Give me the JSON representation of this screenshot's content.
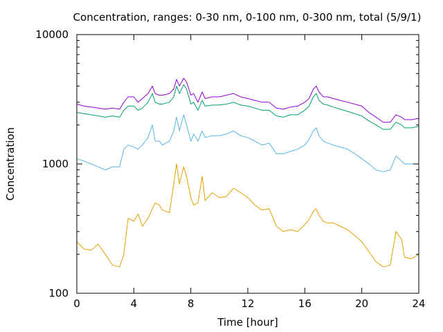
{
  "chart_data": {
    "type": "line",
    "title": "Concentration, ranges: 0-30 nm, 0-100 nm, 0-300 nm, total (5/9/1)",
    "xlabel": "Time [hour]",
    "ylabel": "Concentration",
    "xlim": [
      0,
      24
    ],
    "ylim": [
      100,
      10000
    ],
    "yscale": "log",
    "grid": false,
    "xticks": [
      0,
      4,
      8,
      12,
      16,
      20,
      24
    ],
    "yticks": [
      100,
      1000,
      10000
    ],
    "xtick_labels": [
      "0",
      "4",
      "8",
      "12",
      "16",
      "20",
      "24"
    ],
    "ytick_labels": [
      "100",
      "1000",
      "10000"
    ],
    "series": [
      {
        "color": "#9400d3",
        "x": [
          0,
          0.5,
          1,
          1.5,
          2,
          2.5,
          3,
          3.3,
          3.6,
          4,
          4.3,
          4.6,
          5,
          5.3,
          5.5,
          5.8,
          6,
          6.5,
          6.8,
          7,
          7.2,
          7.5,
          7.7,
          8,
          8.2,
          8.5,
          8.8,
          9,
          9.5,
          10,
          10.5,
          11,
          11.5,
          12,
          12.5,
          13,
          13.5,
          14,
          14.5,
          15,
          15.5,
          16,
          16.3,
          16.6,
          16.8,
          17,
          17.3,
          17.6,
          18,
          18.5,
          19,
          19.5,
          20,
          20.5,
          21,
          21.5,
          22,
          22.4,
          22.8,
          23,
          23.5,
          24
        ],
        "y": [
          2900,
          2800,
          2750,
          2700,
          2650,
          2700,
          2650,
          3000,
          3300,
          3300,
          3000,
          3200,
          3500,
          4000,
          3500,
          3400,
          3400,
          3500,
          3800,
          4500,
          4000,
          4600,
          4300,
          3400,
          3500,
          3000,
          3600,
          3200,
          3300,
          3300,
          3400,
          3500,
          3300,
          3200,
          3100,
          3000,
          3000,
          2700,
          2650,
          2750,
          2800,
          3000,
          3200,
          3800,
          4000,
          3600,
          3300,
          3300,
          3200,
          3100,
          3000,
          2900,
          2800,
          2500,
          2300,
          2100,
          2100,
          2400,
          2300,
          2200,
          2200,
          2250
        ]
      },
      {
        "color": "#009e73",
        "x": [
          0,
          0.5,
          1,
          1.5,
          2,
          2.5,
          3,
          3.3,
          3.6,
          4,
          4.3,
          4.6,
          5,
          5.3,
          5.5,
          5.8,
          6,
          6.5,
          6.8,
          7,
          7.2,
          7.5,
          7.7,
          8,
          8.2,
          8.5,
          8.8,
          9,
          9.5,
          10,
          10.5,
          11,
          11.5,
          12,
          12.5,
          13,
          13.5,
          14,
          14.5,
          15,
          15.5,
          16,
          16.3,
          16.6,
          16.8,
          17,
          17.3,
          17.6,
          18,
          18.5,
          19,
          19.5,
          20,
          20.5,
          21,
          21.5,
          22,
          22.4,
          22.8,
          23,
          23.5,
          24
        ],
        "y": [
          2500,
          2450,
          2400,
          2350,
          2300,
          2350,
          2300,
          2600,
          2800,
          2800,
          2600,
          2700,
          3000,
          3500,
          3000,
          2900,
          2900,
          3000,
          3300,
          4000,
          3500,
          4100,
          3800,
          2900,
          3000,
          2600,
          3100,
          2800,
          2850,
          2850,
          2900,
          3000,
          2850,
          2800,
          2700,
          2600,
          2600,
          2350,
          2300,
          2400,
          2400,
          2600,
          2800,
          3300,
          3500,
          3100,
          2900,
          2850,
          2750,
          2650,
          2550,
          2450,
          2350,
          2150,
          2000,
          1850,
          1850,
          2100,
          2000,
          1900,
          1900,
          1950
        ]
      },
      {
        "color": "#56b4e9",
        "x": [
          0,
          0.5,
          1,
          1.5,
          2,
          2.5,
          3,
          3.3,
          3.6,
          4,
          4.3,
          4.6,
          5,
          5.3,
          5.5,
          5.8,
          6,
          6.5,
          6.8,
          7,
          7.2,
          7.5,
          7.7,
          8,
          8.2,
          8.5,
          8.8,
          9,
          9.5,
          10,
          10.5,
          11,
          11.5,
          12,
          12.5,
          13,
          13.5,
          14,
          14.5,
          15,
          15.5,
          16,
          16.3,
          16.6,
          16.8,
          17,
          17.3,
          17.6,
          18,
          18.5,
          19,
          19.5,
          20,
          20.5,
          21,
          21.5,
          22,
          22.4,
          22.8,
          23,
          23.5,
          24
        ],
        "y": [
          1100,
          1050,
          1000,
          950,
          900,
          950,
          950,
          1300,
          1400,
          1350,
          1300,
          1400,
          1600,
          2000,
          1500,
          1500,
          1400,
          1500,
          1800,
          2300,
          1800,
          2400,
          2000,
          1500,
          1700,
          1500,
          1800,
          1600,
          1650,
          1650,
          1700,
          1800,
          1650,
          1600,
          1500,
          1400,
          1450,
          1200,
          1200,
          1250,
          1300,
          1400,
          1550,
          1800,
          1900,
          1650,
          1500,
          1450,
          1400,
          1350,
          1300,
          1200,
          1100,
          1000,
          900,
          870,
          900,
          1150,
          1050,
          1000,
          1000,
          1000
        ]
      },
      {
        "color": "#e69f00",
        "x": [
          0,
          0.5,
          1,
          1.5,
          2,
          2.5,
          3,
          3.3,
          3.6,
          4,
          4.3,
          4.6,
          5,
          5.3,
          5.5,
          5.8,
          6,
          6.5,
          6.8,
          7,
          7.2,
          7.5,
          7.7,
          8,
          8.2,
          8.5,
          8.8,
          9,
          9.5,
          10,
          10.5,
          11,
          11.5,
          12,
          12.5,
          13,
          13.5,
          14,
          14.5,
          15,
          15.5,
          16,
          16.3,
          16.6,
          16.8,
          17,
          17.3,
          17.6,
          18,
          18.5,
          19,
          19.5,
          20,
          20.5,
          21,
          21.5,
          22,
          22.4,
          22.8,
          23,
          23.5,
          24
        ],
        "y": [
          250,
          220,
          215,
          240,
          200,
          165,
          160,
          200,
          380,
          360,
          410,
          330,
          380,
          450,
          500,
          480,
          440,
          420,
          700,
          1000,
          700,
          950,
          800,
          550,
          480,
          500,
          800,
          520,
          600,
          550,
          560,
          650,
          600,
          550,
          480,
          440,
          450,
          330,
          300,
          310,
          300,
          340,
          370,
          430,
          450,
          400,
          360,
          350,
          350,
          330,
          310,
          280,
          250,
          210,
          175,
          160,
          165,
          300,
          260,
          190,
          185,
          200
        ]
      }
    ]
  }
}
